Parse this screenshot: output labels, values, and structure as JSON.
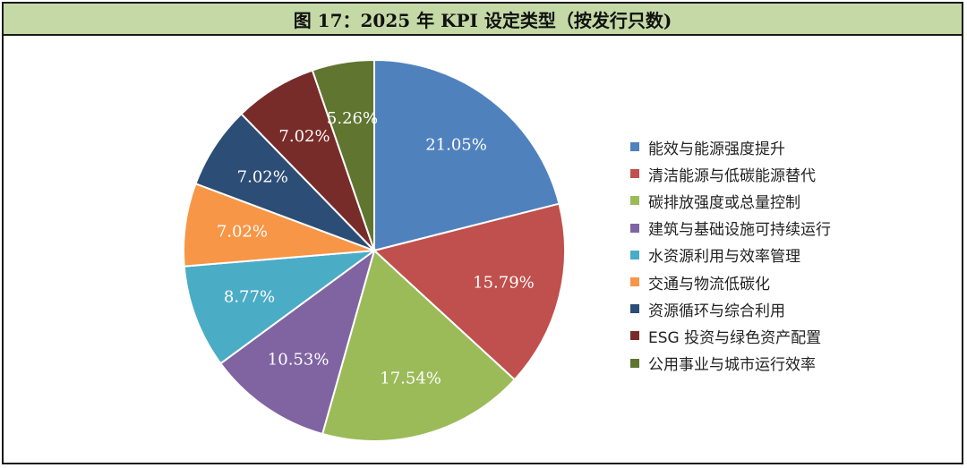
{
  "title": "图 17：2025 年 KPI 设定类型（按发行只数)",
  "chart_data": {
    "type": "pie",
    "title": "图 17：2025 年 KPI 设定类型（按发行只数)",
    "start_angle_deg": 0,
    "direction": "clockwise",
    "legend_position": "right",
    "slices": [
      {
        "label": "能效与能源强度提升",
        "value": 21.05,
        "display": "21.05%",
        "color": "#4f81bd"
      },
      {
        "label": "清洁能源与低碳能源替代",
        "value": 15.79,
        "display": "15.79%",
        "color": "#c0504d"
      },
      {
        "label": "碳排放强度或总量控制",
        "value": 17.54,
        "display": "17.54%",
        "color": "#9bbb59"
      },
      {
        "label": "建筑与基础设施可持续运行",
        "value": 10.53,
        "display": "10.53%",
        "color": "#8064a2"
      },
      {
        "label": "水资源利用与效率管理",
        "value": 8.77,
        "display": "8.77%",
        "color": "#4bacc6"
      },
      {
        "label": "交通与物流低碳化",
        "value": 7.02,
        "display": "7.02%",
        "color": "#f79646"
      },
      {
        "label": "资源循环与综合利用",
        "value": 7.02,
        "display": "7.02%",
        "color": "#2c4d75"
      },
      {
        "label": "ESG 投资与绿色资产配置",
        "value": 7.02,
        "display": "7.02%",
        "color": "#772c2a"
      },
      {
        "label": "公用事业与城市运行效率",
        "value": 5.26,
        "display": "5.26%",
        "color": "#5f7530"
      }
    ]
  }
}
